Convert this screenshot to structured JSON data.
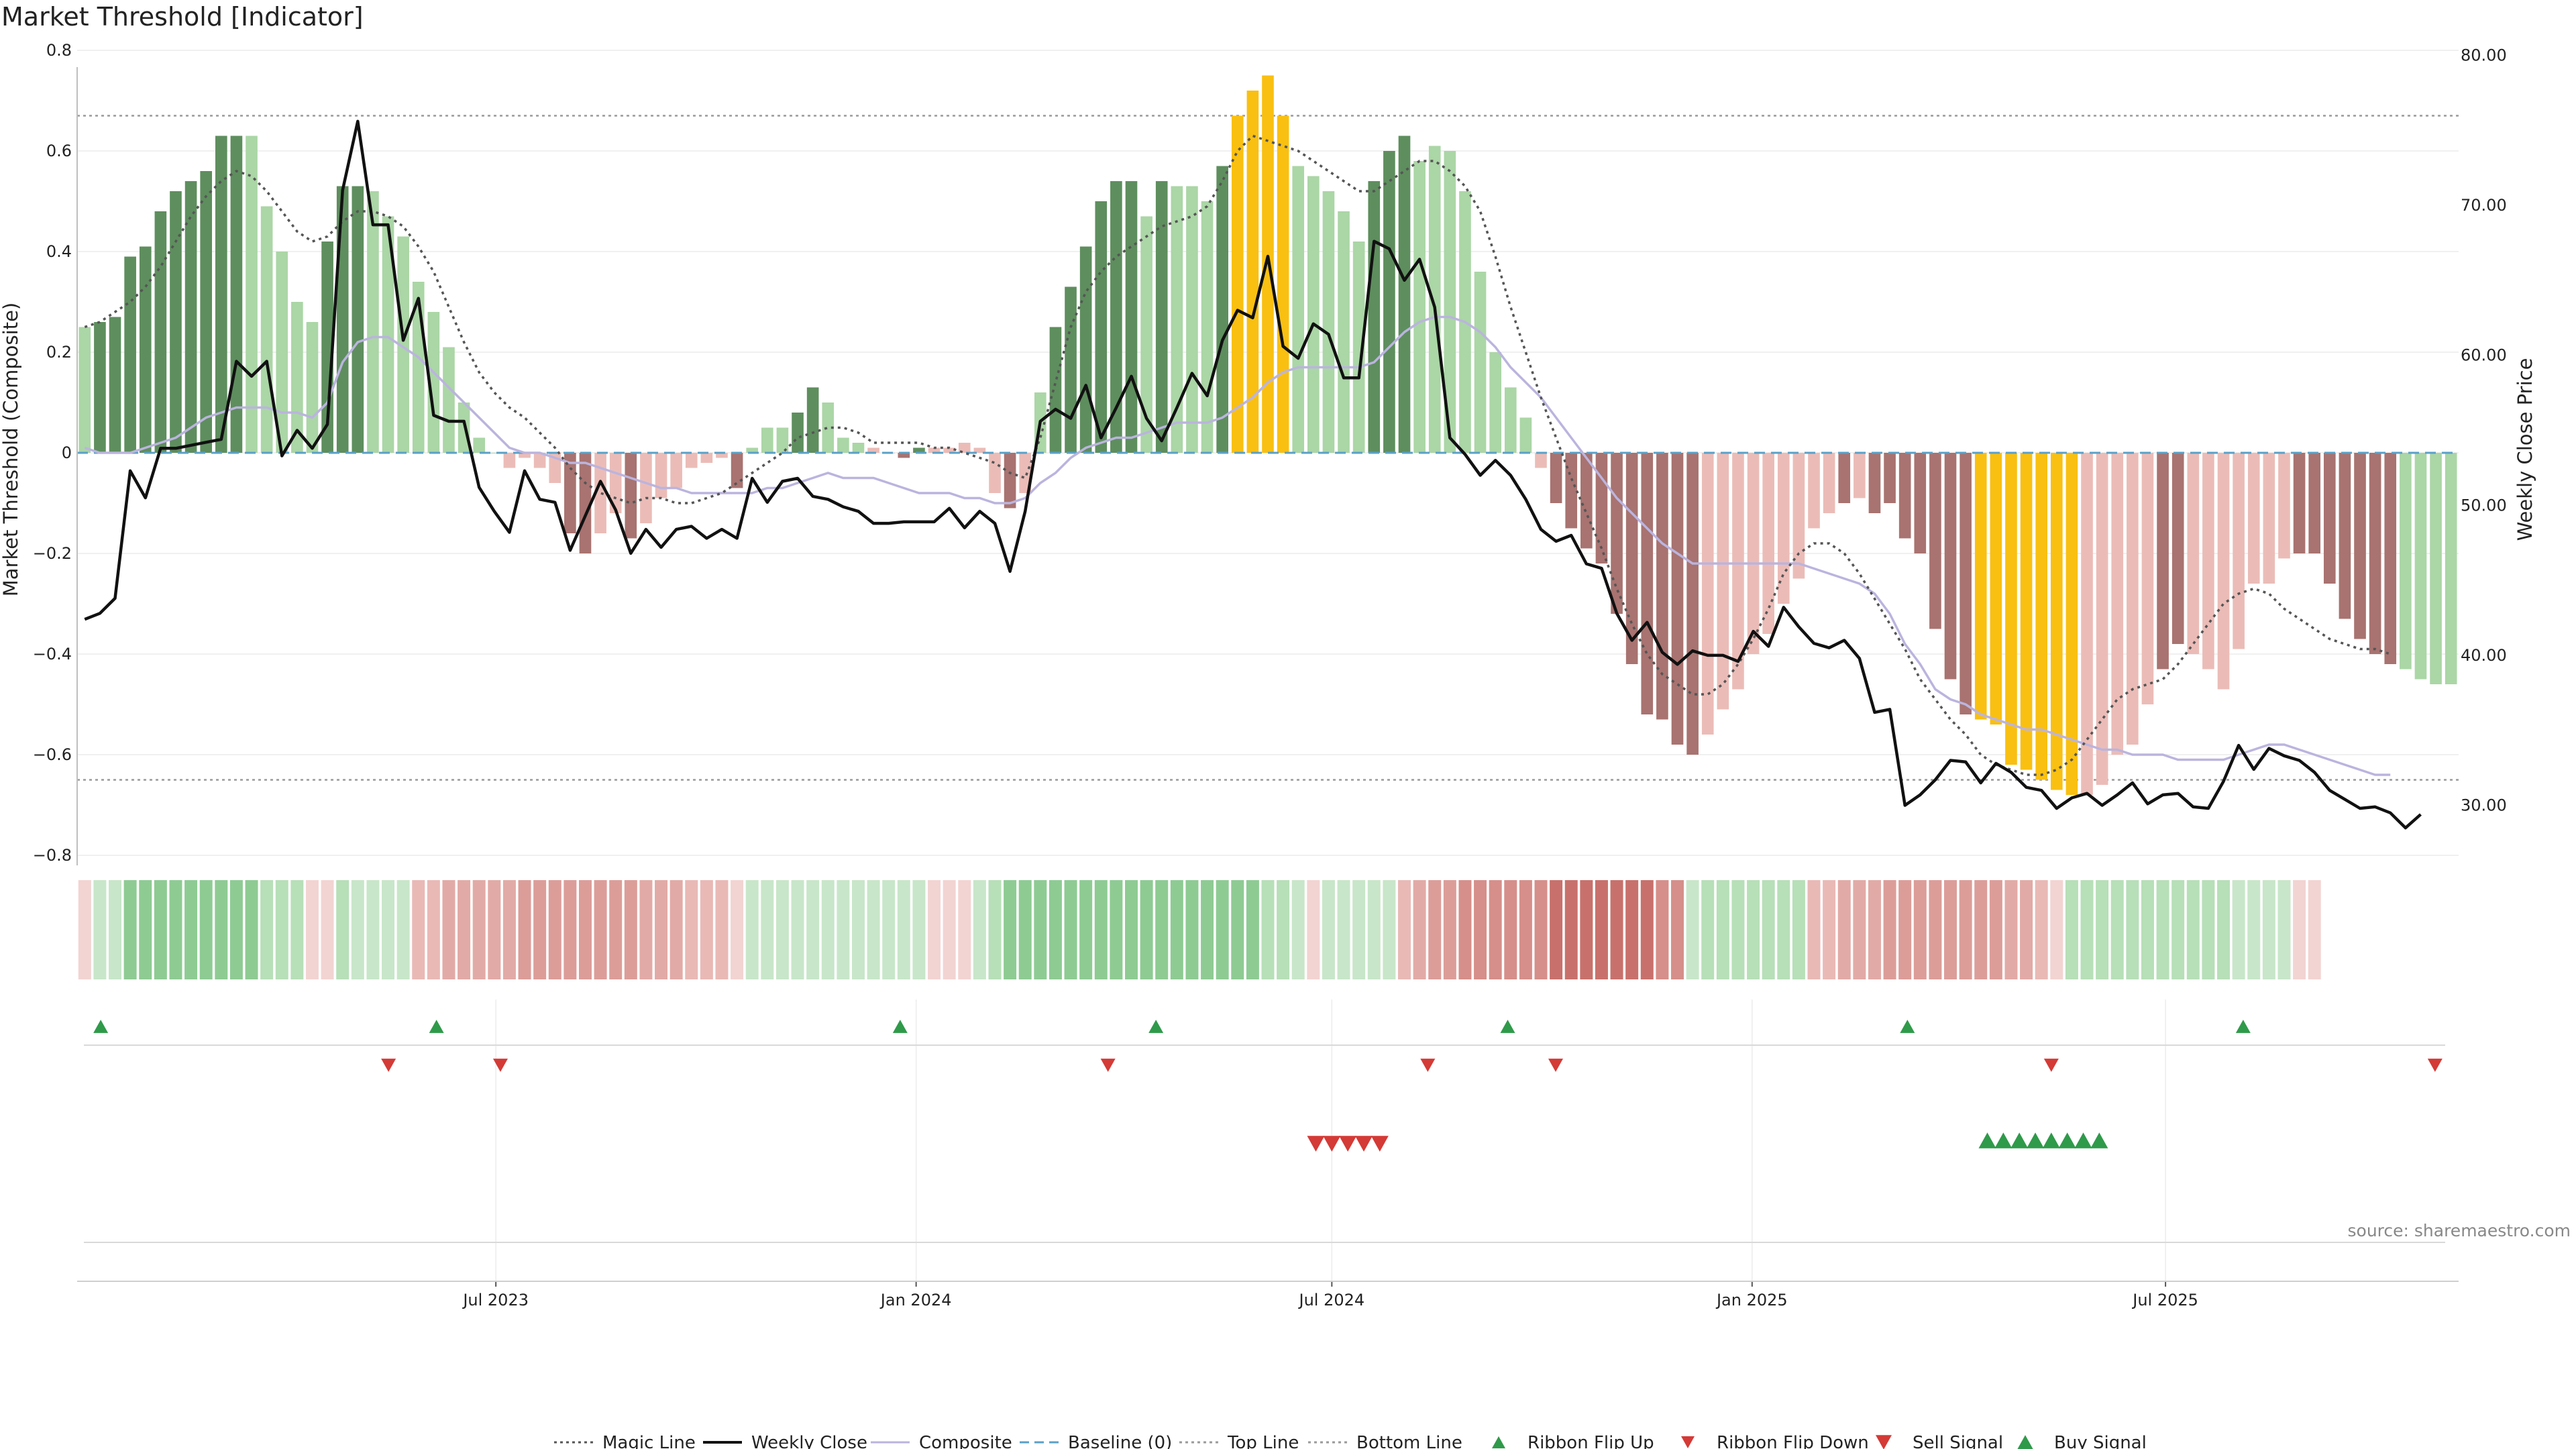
{
  "chart_data": {
    "type": "bar",
    "title": "Market Threshold [Indicator]",
    "ylabel_left": "Market Threshold (Composite)",
    "ylabel_right": "Weekly Close Price",
    "ylim_left": [
      -0.82,
      0.82
    ],
    "ylim_right": [
      26.0,
      81.0
    ],
    "yticks_left": [
      "0.8",
      "0.6",
      "0.4",
      "0.2",
      "0",
      "−0.2",
      "−0.4",
      "−0.6",
      "−0.8"
    ],
    "yticks_right": [
      "80.00",
      "70.00",
      "60.00",
      "50.00",
      "40.00",
      "30.00"
    ],
    "x_start": "2023-01-02",
    "x_end": "2025-11-03",
    "xticks": [
      {
        "date": "2023-07-01",
        "label": "Jul 2023"
      },
      {
        "date": "2024-01-01",
        "label": "Jan 2024"
      },
      {
        "date": "2024-07-01",
        "label": "Jul 2024"
      },
      {
        "date": "2025-01-01",
        "label": "Jan 2025"
      },
      {
        "date": "2025-07-01",
        "label": "Jul 2025"
      }
    ],
    "top_line": 0.67,
    "bottom_line": -0.65,
    "baseline": 0,
    "grid": true,
    "legend_position": "bottom",
    "source": "source: sharemaestro.com",
    "colors": {
      "pos_strong": "#5e8e5e",
      "pos_weak": "#abd6a6",
      "neg_strong": "#a87370",
      "neg_weak": "#ebbcb7",
      "extreme": "#f9c012",
      "weekly_close": "#111111",
      "composite": "#bbb4de",
      "magic": "#555555",
      "baseline": "#5aa0c8",
      "limit_lines": "#9a9a9a",
      "flip_up": "#2f9a4a",
      "flip_down": "#d43a36",
      "sell": "#d43a36",
      "buy": "#2f9a4a"
    },
    "bars": [
      0.25,
      0.26,
      0.27,
      0.39,
      0.41,
      0.48,
      0.52,
      0.54,
      0.56,
      0.63,
      0.63,
      0.63,
      0.49,
      0.4,
      0.3,
      0.26,
      0.42,
      0.53,
      0.53,
      0.52,
      0.47,
      0.43,
      0.34,
      0.28,
      0.21,
      0.1,
      0.03,
      0,
      -0.03,
      -0.01,
      -0.03,
      -0.06,
      -0.16,
      -0.2,
      -0.16,
      -0.12,
      -0.17,
      -0.14,
      -0.09,
      -0.07,
      -0.03,
      -0.02,
      -0.01,
      -0.07,
      0.01,
      0.05,
      0.05,
      0.08,
      0.13,
      0.1,
      0.03,
      0.02,
      0.01,
      0,
      -0.01,
      0.01,
      0.01,
      0.01,
      0.02,
      0.01,
      -0.08,
      -0.11,
      -0.08,
      0.12,
      0.25,
      0.33,
      0.41,
      0.5,
      0.54,
      0.54,
      0.47,
      0.54,
      0.53,
      0.53,
      0.5,
      0.57,
      0.67,
      0.72,
      0.75,
      0.67,
      0.57,
      0.55,
      0.52,
      0.48,
      0.42,
      0.54,
      0.6,
      0.63,
      0.58,
      0.61,
      0.6,
      0.52,
      0.36,
      0.2,
      0.13,
      0.07,
      -0.03,
      -0.1,
      -0.15,
      -0.19,
      -0.22,
      -0.32,
      -0.42,
      -0.52,
      -0.53,
      -0.58,
      -0.6,
      -0.56,
      -0.51,
      -0.47,
      -0.4,
      -0.36,
      -0.3,
      -0.25,
      -0.15,
      -0.12,
      -0.1,
      -0.09,
      -0.12,
      -0.1,
      -0.17,
      -0.2,
      -0.35,
      -0.45,
      -0.52,
      -0.53,
      -0.54,
      -0.62,
      -0.63,
      -0.65,
      -0.67,
      -0.68,
      -0.68,
      -0.66,
      -0.6,
      -0.58,
      -0.5,
      -0.43,
      -0.38,
      -0.4,
      -0.43,
      -0.47,
      -0.39,
      -0.26,
      -0.26,
      -0.21,
      -0.2,
      -0.2,
      -0.26,
      -0.33,
      -0.37,
      -0.4,
      -0.42,
      -0.43,
      -0.45,
      -0.46,
      -0.46
    ],
    "bar_styles": [
      "wp",
      "sp",
      "sp",
      "sp",
      "sp",
      "sp",
      "sp",
      "sp",
      "sp",
      "sp",
      "sp",
      "wp",
      "wp",
      "wp",
      "wp",
      "wp",
      "sp",
      "sp",
      "sp",
      "wp",
      "wp",
      "wp",
      "wp",
      "wp",
      "wp",
      "wp",
      "wp",
      "wp",
      "wn",
      "wn",
      "wn",
      "wn",
      "sn",
      "sn",
      "wn",
      "wn",
      "sn",
      "wn",
      "wn",
      "wn",
      "wn",
      "wn",
      "wn",
      "sn",
      "wp",
      "wp",
      "wp",
      "sp",
      "sp",
      "wp",
      "wp",
      "wp",
      "wn",
      "wn",
      "sn",
      "sp",
      "wn",
      "wn",
      "wn",
      "wn",
      "wn",
      "sn",
      "wn",
      "wp",
      "sp",
      "sp",
      "sp",
      "sp",
      "sp",
      "sp",
      "wp",
      "sp",
      "wp",
      "wp",
      "wp",
      "sp",
      "ex",
      "ex",
      "ex",
      "ex",
      "wp",
      "wp",
      "wp",
      "wp",
      "wp",
      "sp",
      "sp",
      "sp",
      "wp",
      "wp",
      "wp",
      "wp",
      "wp",
      "wp",
      "wp",
      "wp",
      "wn",
      "sn",
      "sn",
      "sn",
      "sn",
      "sn",
      "sn",
      "sn",
      "sn",
      "sn",
      "sn",
      "wn",
      "wn",
      "wn",
      "wn",
      "wn",
      "wn",
      "wn",
      "wn",
      "wn",
      "sn",
      "wn",
      "sn",
      "sn",
      "sn",
      "sn",
      "sn",
      "sn",
      "sn",
      "ex",
      "ex",
      "ex",
      "ex",
      "ex",
      "ex",
      "ex",
      "wn",
      "wn",
      "wn",
      "wn",
      "wn",
      "sn",
      "sn",
      "wn",
      "wn",
      "wn",
      "wn",
      "wn",
      "wn",
      "wn",
      "sn",
      "sn",
      "sn",
      "sn",
      "sn",
      "sn",
      "sn"
    ],
    "weekly_close": [
      42.4,
      42.8,
      43.8,
      52.3,
      50.5,
      53.8,
      53.8,
      54.0,
      54.2,
      54.4,
      59.6,
      58.6,
      59.6,
      53.3,
      55.0,
      53.8,
      55.4,
      71.0,
      75.6,
      68.7,
      68.7,
      61.0,
      63.8,
      56.0,
      55.6,
      55.6,
      51.2,
      49.6,
      48.2,
      52.3,
      50.4,
      50.2,
      47.0,
      49.3,
      51.6,
      49.7,
      46.8,
      48.4,
      47.2,
      48.4,
      48.6,
      47.8,
      48.4,
      47.8,
      51.8,
      50.2,
      51.6,
      51.8,
      50.6,
      50.4,
      49.9,
      49.6,
      48.8,
      48.8,
      48.9,
      48.9,
      48.9,
      49.8,
      48.5,
      49.6,
      48.8,
      45.6,
      49.6,
      55.6,
      56.4,
      55.8,
      58.0,
      54.5,
      56.5,
      58.6,
      55.8,
      54.3,
      56.5,
      58.8,
      57.3,
      61.0,
      63.0,
      62.5,
      66.6,
      60.6,
      59.8,
      62.1,
      61.4,
      58.5,
      58.5,
      67.6,
      67.1,
      65.0,
      66.4,
      63.2,
      54.5,
      53.4,
      52.0,
      53.0,
      52.0,
      50.4,
      48.4,
      47.6,
      48.0,
      46.1,
      45.8,
      42.8,
      41.0,
      42.2,
      40.2,
      39.4,
      40.3,
      40.0,
      40.0,
      39.6,
      41.6,
      40.6,
      43.2,
      41.9,
      40.8,
      40.5,
      41.0,
      39.8,
      36.2,
      36.4,
      30.0,
      30.7,
      31.7,
      33.0,
      32.9,
      31.5,
      32.8,
      32.2,
      31.2,
      31.0,
      29.8,
      30.5,
      30.8,
      30.0,
      30.7,
      31.5,
      30.1,
      30.7,
      30.8,
      29.9,
      29.8,
      31.6,
      34.0,
      32.4,
      33.8,
      33.3,
      33.0,
      32.2,
      31.0,
      30.4,
      29.8,
      29.9,
      29.5,
      28.5,
      29.4
    ],
    "composite": [
      0.01,
      0,
      0,
      0,
      0.01,
      0.02,
      0.03,
      0.05,
      0.07,
      0.08,
      0.09,
      0.09,
      0.09,
      0.08,
      0.08,
      0.07,
      0.1,
      0.18,
      0.22,
      0.23,
      0.23,
      0.21,
      0.19,
      0.16,
      0.13,
      0.1,
      0.07,
      0.04,
      0.01,
      0,
      0,
      -0.01,
      -0.02,
      -0.02,
      -0.03,
      -0.04,
      -0.05,
      -0.06,
      -0.07,
      -0.07,
      -0.08,
      -0.08,
      -0.08,
      -0.08,
      -0.08,
      -0.07,
      -0.07,
      -0.06,
      -0.05,
      -0.04,
      -0.05,
      -0.05,
      -0.05,
      -0.06,
      -0.07,
      -0.08,
      -0.08,
      -0.08,
      -0.09,
      -0.09,
      -0.1,
      -0.1,
      -0.09,
      -0.06,
      -0.04,
      -0.01,
      0.01,
      0.02,
      0.03,
      0.03,
      0.04,
      0.05,
      0.06,
      0.06,
      0.06,
      0.07,
      0.09,
      0.11,
      0.14,
      0.16,
      0.17,
      0.17,
      0.17,
      0.17,
      0.17,
      0.18,
      0.21,
      0.24,
      0.26,
      0.27,
      0.27,
      0.26,
      0.24,
      0.21,
      0.17,
      0.14,
      0.11,
      0.07,
      0.03,
      -0.01,
      -0.05,
      -0.09,
      -0.12,
      -0.15,
      -0.18,
      -0.2,
      -0.22,
      -0.22,
      -0.22,
      -0.22,
      -0.22,
      -0.22,
      -0.22,
      -0.22,
      -0.23,
      -0.24,
      -0.25,
      -0.26,
      -0.28,
      -0.32,
      -0.38,
      -0.42,
      -0.47,
      -0.49,
      -0.5,
      -0.52,
      -0.53,
      -0.54,
      -0.55,
      -0.55,
      -0.56,
      -0.57,
      -0.58,
      -0.59,
      -0.59,
      -0.6,
      -0.6,
      -0.6,
      -0.61,
      -0.61,
      -0.61,
      -0.61,
      -0.6,
      -0.59,
      -0.58,
      -0.58,
      -0.59,
      -0.6,
      -0.61,
      -0.62,
      -0.63,
      -0.64,
      -0.64
    ],
    "magic_line": [
      0.25,
      0.26,
      0.28,
      0.3,
      0.33,
      0.37,
      0.42,
      0.47,
      0.51,
      0.54,
      0.56,
      0.55,
      0.52,
      0.48,
      0.44,
      0.42,
      0.43,
      0.46,
      0.48,
      0.48,
      0.47,
      0.45,
      0.41,
      0.36,
      0.29,
      0.22,
      0.16,
      0.12,
      0.09,
      0.07,
      0.04,
      0.01,
      -0.03,
      -0.06,
      -0.08,
      -0.09,
      -0.1,
      -0.09,
      -0.09,
      -0.1,
      -0.1,
      -0.09,
      -0.08,
      -0.06,
      -0.04,
      -0.02,
      0,
      0.03,
      0.04,
      0.05,
      0.05,
      0.04,
      0.02,
      0.02,
      0.02,
      0.02,
      0.01,
      0.01,
      0,
      -0.01,
      -0.02,
      -0.04,
      -0.05,
      0.03,
      0.14,
      0.25,
      0.32,
      0.36,
      0.39,
      0.41,
      0.43,
      0.45,
      0.46,
      0.47,
      0.49,
      0.54,
      0.6,
      0.63,
      0.62,
      0.61,
      0.6,
      0.58,
      0.56,
      0.54,
      0.52,
      0.52,
      0.54,
      0.56,
      0.58,
      0.58,
      0.56,
      0.53,
      0.48,
      0.39,
      0.29,
      0.2,
      0.11,
      0.03,
      -0.05,
      -0.12,
      -0.19,
      -0.27,
      -0.34,
      -0.4,
      -0.44,
      -0.46,
      -0.48,
      -0.48,
      -0.46,
      -0.42,
      -0.37,
      -0.31,
      -0.24,
      -0.2,
      -0.18,
      -0.18,
      -0.2,
      -0.24,
      -0.29,
      -0.34,
      -0.39,
      -0.45,
      -0.49,
      -0.53,
      -0.56,
      -0.6,
      -0.62,
      -0.63,
      -0.64,
      -0.64,
      -0.63,
      -0.61,
      -0.57,
      -0.53,
      -0.49,
      -0.47,
      -0.46,
      -0.45,
      -0.42,
      -0.38,
      -0.34,
      -0.3,
      -0.28,
      -0.27,
      -0.28,
      -0.31,
      -0.33,
      -0.35,
      -0.37,
      -0.38,
      -0.39,
      -0.39,
      -0.4
    ],
    "ribbon_colors": [
      "#f2d4d2",
      "#c8e6c9",
      "#c8e6c9",
      "#8ecb93",
      "#8ecb93",
      "#8ecb93",
      "#8ecb93",
      "#8ecb93",
      "#8ecb93",
      "#8ecb93",
      "#8ecb93",
      "#8ecb93",
      "#b7dfb8",
      "#b7dfb8",
      "#b7dfb8",
      "#f2d4d2",
      "#f2d4d2",
      "#b7dfb8",
      "#c8e6c9",
      "#c8e6c9",
      "#c8e6c9",
      "#c8e6c9",
      "#e9b9b6",
      "#e9b9b6",
      "#e2aaa6",
      "#e2aaa6",
      "#e2aaa6",
      "#e2aaa6",
      "#e2aaa6",
      "#dc9d99",
      "#dc9d99",
      "#dc9d99",
      "#dc9d99",
      "#dc9d99",
      "#dc9d99",
      "#dc9d99",
      "#dc9d99",
      "#e2aaa6",
      "#e2aaa6",
      "#e2aaa6",
      "#e9b9b6",
      "#e9b9b6",
      "#e9b9b6",
      "#f2d4d2",
      "#c8e6c9",
      "#c8e6c9",
      "#c8e6c9",
      "#c8e6c9",
      "#c8e6c9",
      "#c8e6c9",
      "#c8e6c9",
      "#c8e6c9",
      "#c8e6c9",
      "#c8e6c9",
      "#c8e6c9",
      "#c8e6c9",
      "#f2d4d2",
      "#f2d4d2",
      "#f2d4d2",
      "#c8e6c9",
      "#b7dfb8",
      "#8ecb93",
      "#8ecb93",
      "#8ecb93",
      "#8ecb93",
      "#8ecb93",
      "#8ecb93",
      "#8ecb93",
      "#8ecb93",
      "#8ecb93",
      "#8ecb93",
      "#8ecb93",
      "#8ecb93",
      "#8ecb93",
      "#8ecb93",
      "#8ecb93",
      "#8ecb93",
      "#8ecb93",
      "#b7dfb8",
      "#b7dfb8",
      "#c8e6c9",
      "#f2d4d2",
      "#c8e6c9",
      "#c8e6c9",
      "#c8e6c9",
      "#c8e6c9",
      "#c8e6c9",
      "#e9b9b6",
      "#e2aaa6",
      "#dc9d99",
      "#dc9d99",
      "#d68f8a",
      "#d68f8a",
      "#d68f8a",
      "#d68f8a",
      "#d68f8a",
      "#d68f8a",
      "#c8716c",
      "#c8716c",
      "#c8716c",
      "#c8716c",
      "#c8716c",
      "#c8716c",
      "#c8716c",
      "#d68f8a",
      "#d68f8a",
      "#c8e6c9",
      "#b7dfb8",
      "#b7dfb8",
      "#b7dfb8",
      "#b7dfb8",
      "#b7dfb8",
      "#b7dfb8",
      "#b7dfb8",
      "#e9b9b6",
      "#e9b9b6",
      "#e2aaa6",
      "#e2aaa6",
      "#e2aaa6",
      "#dc9d99",
      "#dc9d99",
      "#dc9d99",
      "#dc9d99",
      "#dc9d99",
      "#dc9d99",
      "#dc9d99",
      "#dc9d99",
      "#e2aaa6",
      "#e2aaa6",
      "#e9b9b6",
      "#f2d4d2",
      "#b7dfb8",
      "#b7dfb8",
      "#b7dfb8",
      "#b7dfb8",
      "#b7dfb8",
      "#b7dfb8",
      "#b7dfb8",
      "#b7dfb8",
      "#b7dfb8",
      "#b7dfb8",
      "#b7dfb8",
      "#c8e6c9",
      "#c8e6c9",
      "#c8e6c9",
      "#c8e6c9",
      "#f2d4d2",
      "#f2d4d2"
    ],
    "ribbon_flip_up": [
      "2023-01-09",
      "2023-06-05",
      "2023-12-25",
      "2024-04-15",
      "2024-09-16",
      "2025-03-10",
      "2025-08-04"
    ],
    "ribbon_flip_down": [
      "2023-05-15",
      "2023-07-03",
      "2024-03-25",
      "2024-08-12",
      "2024-10-07",
      "2025-05-12",
      "2025-10-27"
    ],
    "sell_signal": [
      "2024-06-24",
      "2024-07-01",
      "2024-07-08",
      "2024-07-15",
      "2024-07-22"
    ],
    "buy_signal": [
      "2025-04-14",
      "2025-04-21",
      "2025-04-28",
      "2025-05-05",
      "2025-05-12",
      "2025-05-19",
      "2025-05-26",
      "2025-06-02"
    ],
    "legend": [
      {
        "key": "magic",
        "label": "Magic Line",
        "marker": "dotted"
      },
      {
        "key": "weekly_close",
        "label": "Weekly Close",
        "marker": "solid"
      },
      {
        "key": "composite",
        "label": "Composite",
        "marker": "solid"
      },
      {
        "key": "baseline",
        "label": "Baseline (0)",
        "marker": "dashed"
      },
      {
        "key": "limit_lines",
        "label": "Top Line",
        "marker": "dotted"
      },
      {
        "key": "limit_lines",
        "label": "Bottom Line",
        "marker": "dotted"
      },
      {
        "key": "flip_up",
        "label": "Ribbon Flip Up",
        "marker": "tri-up"
      },
      {
        "key": "flip_down",
        "label": "Ribbon Flip Down",
        "marker": "tri-down"
      },
      {
        "key": "sell",
        "label": "Sell Signal",
        "marker": "tri-down-big"
      },
      {
        "key": "buy",
        "label": "Buy Signal",
        "marker": "tri-up-big"
      }
    ]
  }
}
